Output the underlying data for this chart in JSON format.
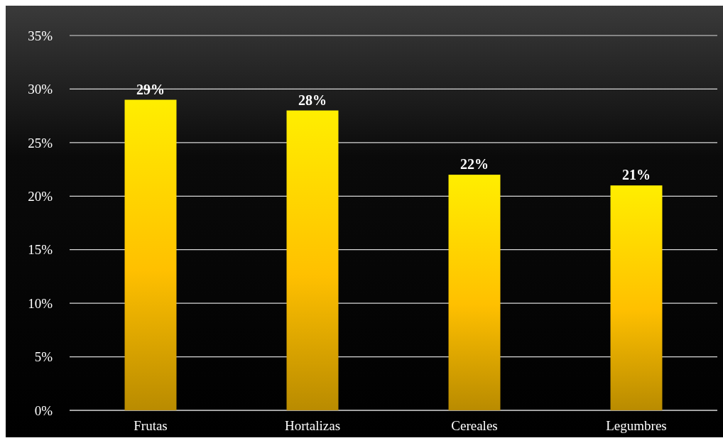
{
  "chart_data": {
    "type": "bar",
    "categories": [
      "Frutas",
      "Hortalizas",
      "Cereales",
      "Legumbres"
    ],
    "values": [
      29,
      28,
      22,
      21
    ],
    "value_labels": [
      "29%",
      "28%",
      "22%",
      "21%"
    ],
    "color": "#ffc000",
    "ylim": [
      0,
      35
    ],
    "yticks": [
      {
        "value": 0,
        "label": "0%"
      },
      {
        "value": 5,
        "label": "5%"
      },
      {
        "value": 10,
        "label": "10%"
      },
      {
        "value": 15,
        "label": "15%"
      },
      {
        "value": 20,
        "label": "20%"
      },
      {
        "value": 25,
        "label": "25%"
      },
      {
        "value": 30,
        "label": "30%"
      },
      {
        "value": 35,
        "label": "35%"
      }
    ],
    "grid": "y"
  }
}
